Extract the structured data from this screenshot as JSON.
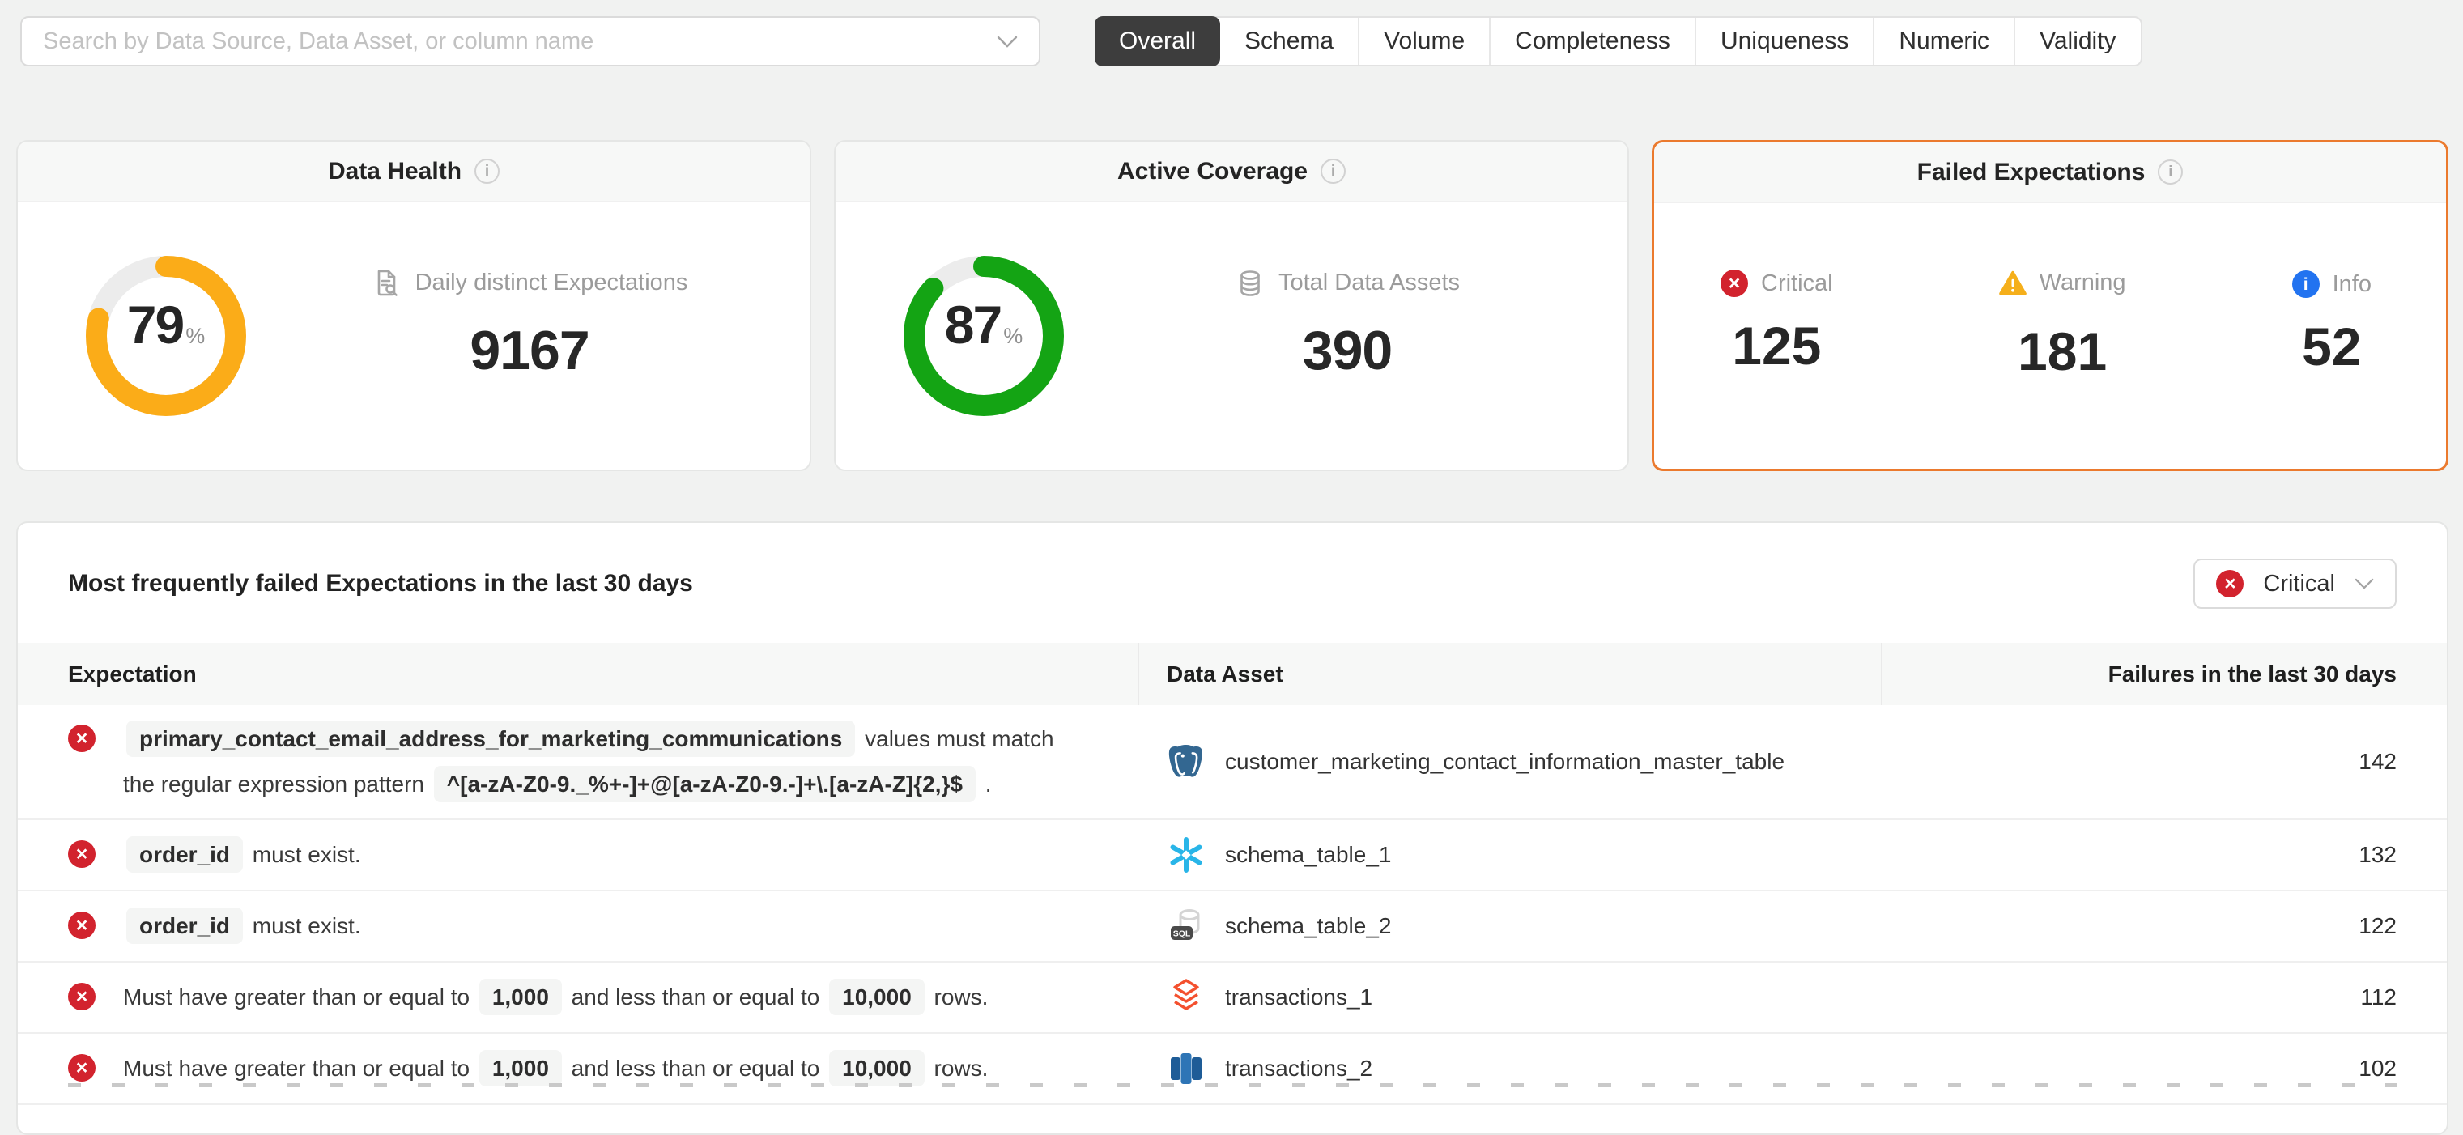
{
  "search": {
    "placeholder": "Search by Data Source, Data Asset, or column name"
  },
  "tabs": {
    "items": [
      {
        "label": "Overall",
        "selected": true
      },
      {
        "label": "Schema",
        "selected": false
      },
      {
        "label": "Volume",
        "selected": false
      },
      {
        "label": "Completeness",
        "selected": false
      },
      {
        "label": "Uniqueness",
        "selected": false
      },
      {
        "label": "Numeric",
        "selected": false
      },
      {
        "label": "Validity",
        "selected": false
      }
    ]
  },
  "cards": {
    "data_health": {
      "title": "Data Health",
      "percent": "79",
      "percent_unit": "%",
      "ring_color": "#FBAC18",
      "metric_label": "Daily distinct Expectations",
      "metric_value": "9167"
    },
    "active_coverage": {
      "title": "Active Coverage",
      "percent": "87",
      "percent_unit": "%",
      "ring_color": "#14A414",
      "metric_label": "Total Data Assets",
      "metric_value": "390"
    },
    "failed_expectations": {
      "title": "Failed Expectations",
      "accent_color": "#EB7A2E",
      "stats": [
        {
          "severity": "critical",
          "label": "Critical",
          "value": "125",
          "color": "#D2232E"
        },
        {
          "severity": "warning",
          "label": "Warning",
          "value": "181",
          "color": "#F5AF1B"
        },
        {
          "severity": "info",
          "label": "Info",
          "value": "52",
          "color": "#2273F0"
        }
      ]
    }
  },
  "failed_table": {
    "title": "Most frequently failed Expectations in the last 30 days",
    "severity_filter": {
      "label": "Critical",
      "severity": "critical"
    },
    "columns": [
      "Expectation",
      "Data Asset",
      "Failures in the last 30 days"
    ],
    "rows": [
      {
        "severity": "critical",
        "expectation": [
          {
            "t": "chip",
            "v": "primary_contact_email_address_for_marketing_communications"
          },
          {
            "t": "text",
            "v": "values must match the regular expression pattern"
          },
          {
            "t": "chip",
            "v": "^[a-zA-Z0-9._%+-]+@[a-zA-Z0-9.-]+\\.[a-zA-Z]{2,}$"
          },
          {
            "t": "text",
            "v": "."
          }
        ],
        "asset": {
          "icon": "postgresql-icon",
          "name": "customer_marketing_contact_information_master_table"
        },
        "failures": "142"
      },
      {
        "severity": "critical",
        "expectation": [
          {
            "t": "chip",
            "v": "order_id"
          },
          {
            "t": "text",
            "v": "must exist."
          }
        ],
        "asset": {
          "icon": "snowflake-icon",
          "name": "schema_table_1"
        },
        "failures": "132"
      },
      {
        "severity": "critical",
        "expectation": [
          {
            "t": "chip",
            "v": "order_id"
          },
          {
            "t": "text",
            "v": "must exist."
          }
        ],
        "asset": {
          "icon": "sql-icon",
          "name": "schema_table_2"
        },
        "failures": "122"
      },
      {
        "severity": "critical",
        "expectation": [
          {
            "t": "text",
            "v": "Must have greater than or equal to"
          },
          {
            "t": "chip",
            "v": "1,000"
          },
          {
            "t": "text",
            "v": "and less than or equal to"
          },
          {
            "t": "chip",
            "v": "10,000"
          },
          {
            "t": "text",
            "v": "rows."
          }
        ],
        "asset": {
          "icon": "databricks-icon",
          "name": "transactions_1"
        },
        "failures": "112"
      },
      {
        "severity": "critical",
        "expectation": [
          {
            "t": "text",
            "v": "Must have greater than or equal to"
          },
          {
            "t": "chip",
            "v": "1,000"
          },
          {
            "t": "text",
            "v": "and less than or equal to"
          },
          {
            "t": "chip",
            "v": "10,000"
          },
          {
            "t": "text",
            "v": "rows."
          }
        ],
        "asset": {
          "icon": "redshift-icon",
          "name": "transactions_2"
        },
        "failures": "102"
      }
    ]
  }
}
